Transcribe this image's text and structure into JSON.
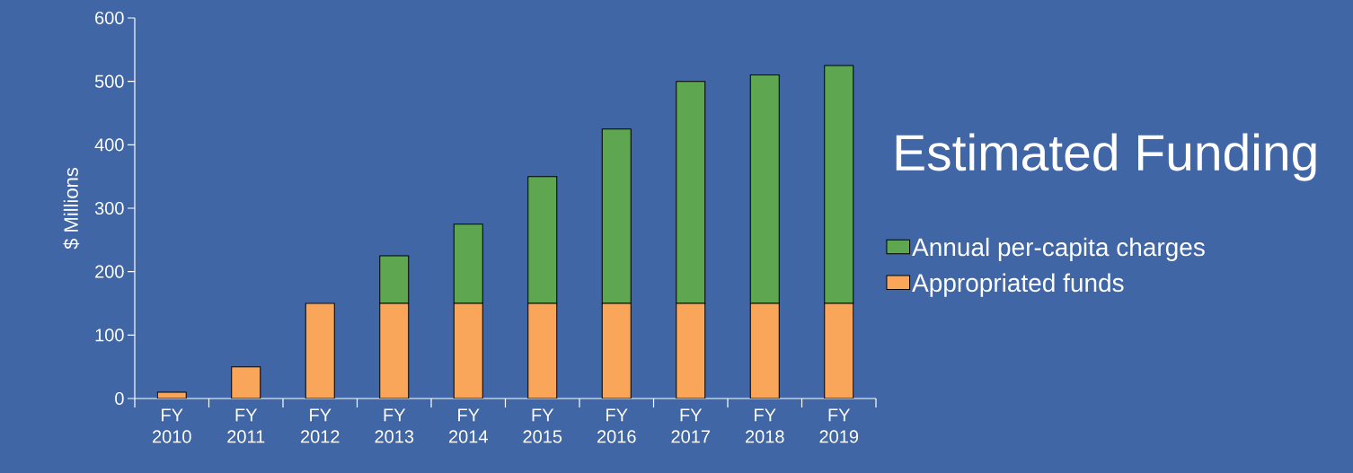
{
  "chart_data": {
    "type": "bar",
    "title": "Estimated Funding",
    "ylabel": "$ Millions",
    "stacked": true,
    "categories": [
      "FY 2010",
      "FY 2011",
      "FY 2012",
      "FY 2013",
      "FY 2014",
      "FY 2015",
      "FY 2016",
      "FY 2017",
      "FY 2018",
      "FY 2019"
    ],
    "series": [
      {
        "name": "Appropriated funds",
        "color": "#f9a65a",
        "values": [
          10,
          50,
          150,
          150,
          150,
          150,
          150,
          150,
          150,
          150
        ]
      },
      {
        "name": "Annual per-capita charges",
        "color": "#5fa650",
        "values": [
          0,
          0,
          0,
          75,
          125,
          200,
          275,
          350,
          360,
          375
        ]
      }
    ],
    "ylim": [
      0,
      600
    ],
    "yticks": [
      0,
      100,
      200,
      300,
      400,
      500,
      600
    ],
    "grid": false,
    "legend": "right"
  }
}
